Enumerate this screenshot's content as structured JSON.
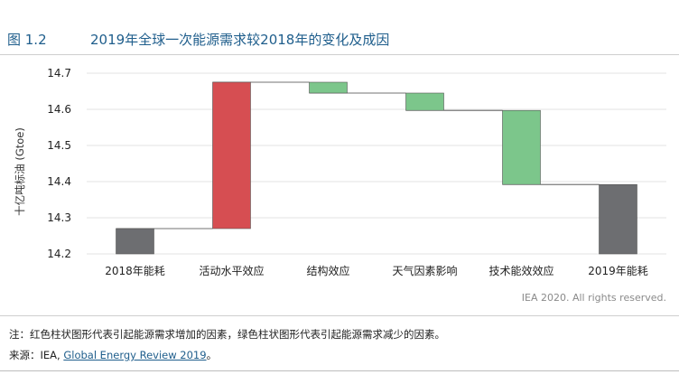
{
  "figure": {
    "number": "图 1.2",
    "title": "2019年全球一次能源需求较2018年的变化及成因"
  },
  "chart_data": {
    "type": "bar",
    "subtype": "waterfall",
    "ylabel": "十亿吨标油 (Gtoe)",
    "ylim": [
      14.2,
      14.7
    ],
    "yticks": [
      "14.2",
      "14.3",
      "14.4",
      "14.5",
      "14.6",
      "14.7"
    ],
    "ytick_values": [
      14.2,
      14.3,
      14.4,
      14.5,
      14.6,
      14.7
    ],
    "grid": true,
    "categories": [
      "2018年能耗",
      "活动水平效应",
      "结构效应",
      "天气因素影响",
      "技术能效效应",
      "2019年能耗"
    ],
    "bars": [
      {
        "category": "2018年能耗",
        "kind": "total",
        "start": 14.2,
        "end": 14.27
      },
      {
        "category": "活动水平效应",
        "kind": "increase",
        "start": 14.27,
        "end": 14.675
      },
      {
        "category": "结构效应",
        "kind": "decrease",
        "start": 14.675,
        "end": 14.645
      },
      {
        "category": "天气因素影响",
        "kind": "decrease",
        "start": 14.645,
        "end": 14.597
      },
      {
        "category": "技术能效效应",
        "kind": "decrease",
        "start": 14.597,
        "end": 14.392
      },
      {
        "category": "2019年能耗",
        "kind": "total",
        "start": 14.2,
        "end": 14.392
      }
    ],
    "colors": {
      "total": "#6d6e71",
      "increase": "#d64e52",
      "decrease": "#7cc68b",
      "grid": "#e3e3e3",
      "connector": "#444444"
    }
  },
  "copyright": "IEA 2020. All rights reserved.",
  "note": "注：红色柱状图形代表引起能源需求增加的因素，绿色柱状图形代表引起能源需求减少的因素。",
  "source": {
    "prefix": "来源：IEA, ",
    "link_text": "Global Energy Review 2019",
    "suffix": "。"
  }
}
